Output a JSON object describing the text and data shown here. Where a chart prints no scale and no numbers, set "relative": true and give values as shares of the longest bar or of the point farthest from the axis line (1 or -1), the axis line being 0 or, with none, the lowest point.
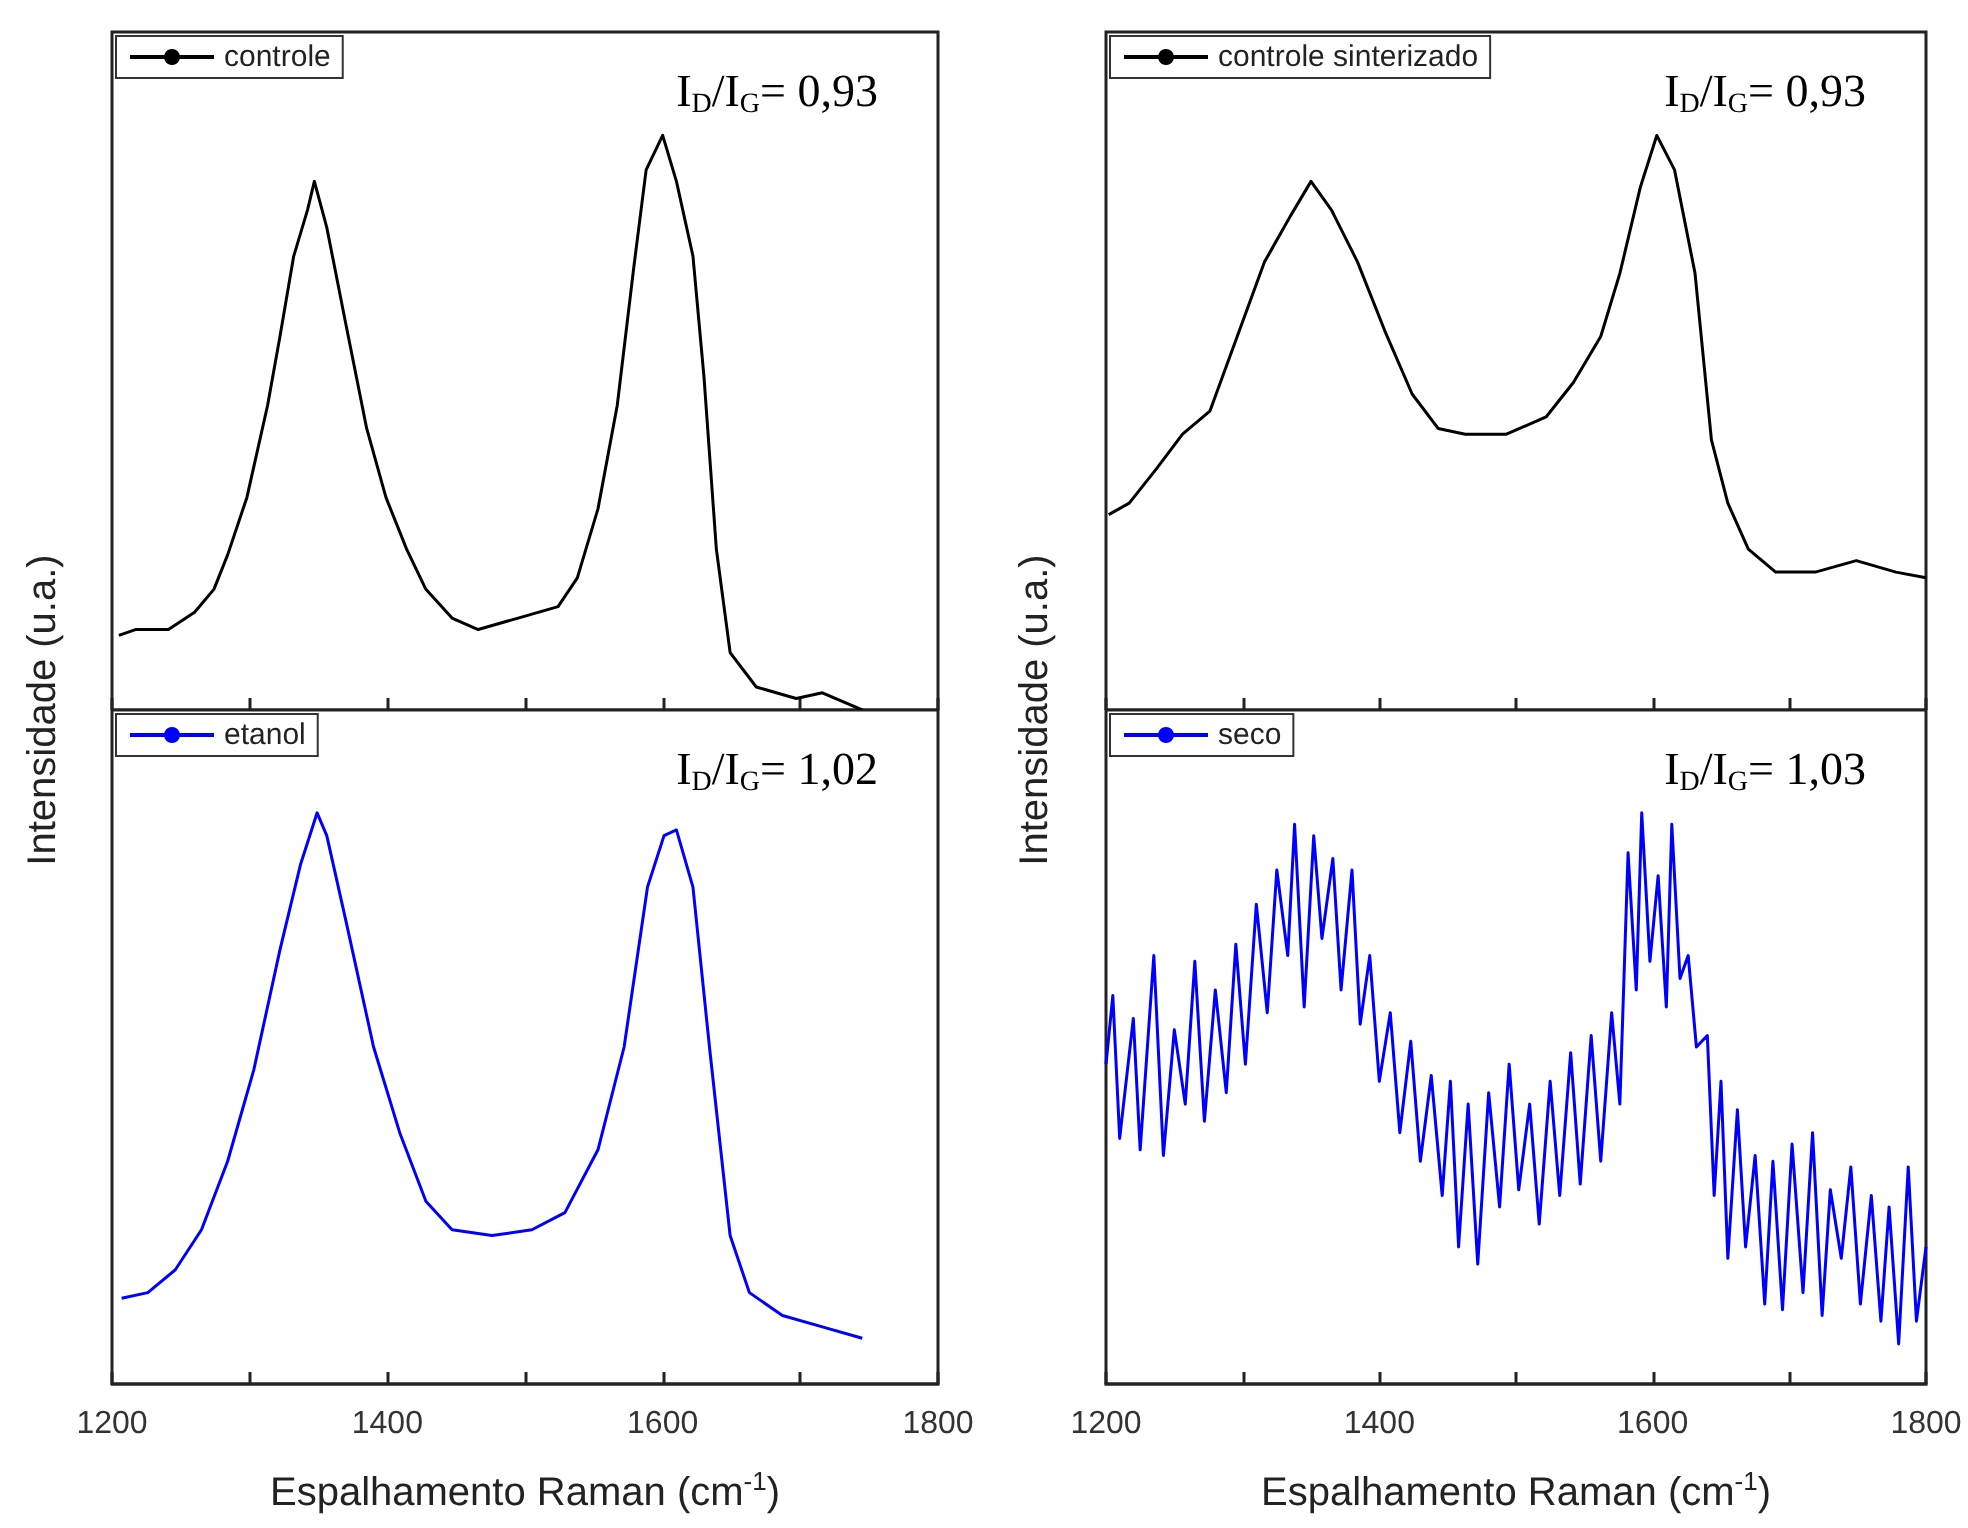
{
  "chart_data": [
    {
      "type": "line",
      "ylabel": "Intensidade (u.a.)",
      "relative": true,
      "xlim": [
        1200,
        1800
      ],
      "xticks": [
        {
          "value": 1200,
          "label": null
        },
        {
          "value": 1300,
          "label": null
        },
        {
          "value": 1400,
          "label": null
        },
        {
          "value": 1500,
          "label": null
        },
        {
          "value": 1600,
          "label": null
        },
        {
          "value": 1700,
          "label": null
        },
        {
          "value": 1800,
          "label": null
        }
      ],
      "tick_labels": false,
      "legend": "top left",
      "annotations": [
        "I$_{D}$/I$_{G}$= 0,93"
      ],
      "series": [
        {
          "name": "controle",
          "color": "#000000",
          "x": [
            1205,
            1217,
            1241,
            1260,
            1274,
            1284,
            1298,
            1313,
            1322,
            1332,
            1342,
            1347,
            1356,
            1370,
            1385,
            1399,
            1414,
            1428,
            1447,
            1466,
            1495,
            1524,
            1538,
            1553,
            1567,
            1579,
            1588,
            1600,
            1610,
            1622,
            1630,
            1639,
            1649,
            1668,
            1697,
            1716,
            1745
          ],
          "values": [
            0.13,
            0.14,
            0.14,
            0.17,
            0.21,
            0.27,
            0.37,
            0.53,
            0.65,
            0.79,
            0.87,
            0.92,
            0.84,
            0.67,
            0.49,
            0.37,
            0.28,
            0.21,
            0.16,
            0.14,
            0.16,
            0.18,
            0.23,
            0.35,
            0.53,
            0.77,
            0.94,
            1,
            0.92,
            0.79,
            0.58,
            0.28,
            0.1,
            0.04,
            0.02,
            0.03,
            0
          ]
        }
      ]
    },
    {
      "type": "line",
      "relative": true,
      "xlim": [
        1200,
        1800
      ],
      "xticks": [
        {
          "value": 1200,
          "label": null
        },
        {
          "value": 1300,
          "label": null
        },
        {
          "value": 1400,
          "label": null
        },
        {
          "value": 1500,
          "label": null
        },
        {
          "value": 1600,
          "label": null
        },
        {
          "value": 1700,
          "label": null
        },
        {
          "value": 1800,
          "label": null
        }
      ],
      "tick_labels": false,
      "legend": "top left",
      "annotations": [
        "I$_{D}$/I$_{G}$= 0,93"
      ],
      "series": [
        {
          "name": "controle sinterizado",
          "color": "#000000",
          "x": [
            1202,
            1217,
            1237,
            1256,
            1276,
            1296,
            1316,
            1335,
            1350,
            1365,
            1384,
            1404,
            1424,
            1443,
            1463,
            1493,
            1522,
            1542,
            1562,
            1576,
            1591,
            1603,
            1616,
            1631,
            1643,
            1655,
            1670,
            1690,
            1719,
            1749,
            1778,
            1800
          ],
          "values": [
            0.34,
            0.36,
            0.42,
            0.48,
            0.52,
            0.65,
            0.78,
            0.86,
            0.92,
            0.87,
            0.78,
            0.66,
            0.55,
            0.49,
            0.48,
            0.48,
            0.51,
            0.57,
            0.65,
            0.76,
            0.91,
            1,
            0.94,
            0.76,
            0.47,
            0.36,
            0.28,
            0.24,
            0.24,
            0.26,
            0.24,
            0.23
          ]
        }
      ]
    },
    {
      "type": "line",
      "xlabel": "Espalhamento Raman (cm$^{-1}$)",
      "relative": true,
      "xlim": [
        1200,
        1800
      ],
      "xticks": [
        {
          "value": 1200,
          "label": "1200"
        },
        {
          "value": 1300,
          "label": null
        },
        {
          "value": 1400,
          "label": "1400"
        },
        {
          "value": 1500,
          "label": null
        },
        {
          "value": 1600,
          "label": "1600"
        },
        {
          "value": 1700,
          "label": null
        },
        {
          "value": 1800,
          "label": "1800"
        }
      ],
      "tick_labels": "x",
      "legend": "top left",
      "annotations": [
        "I$_{D}$/I$_{G}$= 1,02"
      ],
      "series": [
        {
          "name": "etanol",
          "color": "#0000ff",
          "x": [
            1207,
            1226,
            1246,
            1265,
            1284,
            1303,
            1322,
            1337,
            1349,
            1356,
            1370,
            1390,
            1409,
            1428,
            1447,
            1476,
            1505,
            1529,
            1553,
            1572,
            1589,
            1601,
            1610,
            1622,
            1634,
            1649,
            1663,
            1687,
            1716,
            1745
          ],
          "values": [
            0.15,
            0.16,
            0.2,
            0.27,
            0.39,
            0.55,
            0.76,
            0.91,
            1,
            0.96,
            0.81,
            0.59,
            0.44,
            0.32,
            0.27,
            0.26,
            0.27,
            0.3,
            0.41,
            0.59,
            0.87,
            0.96,
            0.97,
            0.87,
            0.59,
            0.26,
            0.16,
            0.12,
            0.1,
            0.08
          ]
        }
      ]
    },
    {
      "type": "line",
      "relative": true,
      "xlim": [
        1200,
        1800
      ],
      "xticks": [
        {
          "value": 1200,
          "label": "1200"
        },
        {
          "value": 1300,
          "label": null
        },
        {
          "value": 1400,
          "label": "1400"
        },
        {
          "value": 1500,
          "label": null
        },
        {
          "value": 1600,
          "label": "1600"
        },
        {
          "value": 1700,
          "label": null
        },
        {
          "value": 1800,
          "label": "1800"
        }
      ],
      "tick_labels": "x",
      "legend": "top left",
      "annotations": [
        "I$_{D}$/I$_{G}$= 1,03"
      ],
      "xlabel": "Espalhamento Raman (cm$^{-1}$)",
      "ylabel": "Intensidade (u.a.)",
      "series": [
        {
          "name": "seco",
          "color": "#0000ff",
          "x": [
            1200,
            1205,
            1210,
            1220,
            1225,
            1235,
            1242,
            1250,
            1258,
            1265,
            1272,
            1280,
            1288,
            1295,
            1302,
            1310,
            1318,
            1325,
            1333,
            1338,
            1345,
            1352,
            1358,
            1366,
            1372,
            1380,
            1386,
            1393,
            1400,
            1408,
            1415,
            1423,
            1430,
            1438,
            1446,
            1452,
            1458,
            1465,
            1472,
            1480,
            1488,
            1495,
            1502,
            1510,
            1517,
            1525,
            1532,
            1540,
            1547,
            1555,
            1562,
            1570,
            1576,
            1582,
            1588,
            1592,
            1598,
            1604,
            1610,
            1614,
            1620,
            1626,
            1632,
            1640,
            1645,
            1650,
            1655,
            1662,
            1668,
            1675,
            1682,
            1688,
            1695,
            1702,
            1710,
            1717,
            1724,
            1730,
            1738,
            1745,
            1752,
            1760,
            1767,
            1773,
            1780,
            1787,
            1793,
            1800
          ],
          "values": [
            0.56,
            0.68,
            0.43,
            0.64,
            0.41,
            0.75,
            0.4,
            0.62,
            0.49,
            0.74,
            0.46,
            0.69,
            0.51,
            0.77,
            0.56,
            0.84,
            0.65,
            0.9,
            0.75,
            0.98,
            0.66,
            0.96,
            0.78,
            0.92,
            0.69,
            0.9,
            0.63,
            0.75,
            0.53,
            0.65,
            0.44,
            0.6,
            0.39,
            0.54,
            0.33,
            0.53,
            0.24,
            0.49,
            0.21,
            0.51,
            0.31,
            0.56,
            0.34,
            0.49,
            0.28,
            0.53,
            0.33,
            0.58,
            0.35,
            0.61,
            0.39,
            0.65,
            0.49,
            0.93,
            0.69,
            1,
            0.74,
            0.89,
            0.66,
            0.98,
            0.71,
            0.75,
            0.59,
            0.61,
            0.33,
            0.53,
            0.22,
            0.48,
            0.24,
            0.4,
            0.14,
            0.39,
            0.13,
            0.42,
            0.16,
            0.44,
            0.12,
            0.34,
            0.22,
            0.38,
            0.14,
            0.33,
            0.11,
            0.31,
            0.07,
            0.38,
            0.11,
            0.24
          ]
        }
      ]
    }
  ]
}
